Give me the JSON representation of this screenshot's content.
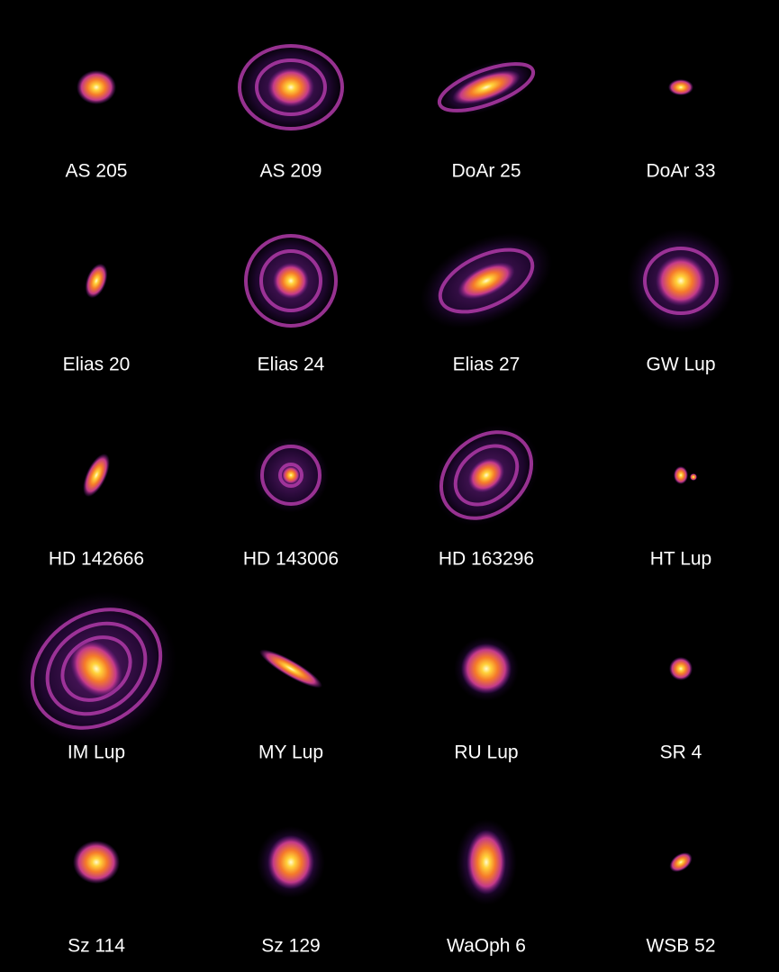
{
  "objects": [
    {
      "name": "AS 205"
    },
    {
      "name": "AS 209"
    },
    {
      "name": "DoAr 25"
    },
    {
      "name": "DoAr 33"
    },
    {
      "name": "Elias 20"
    },
    {
      "name": "Elias 24"
    },
    {
      "name": "Elias 27"
    },
    {
      "name": "GW Lup"
    },
    {
      "name": "HD 142666"
    },
    {
      "name": "HD 143006"
    },
    {
      "name": "HD 163296"
    },
    {
      "name": "HT Lup"
    },
    {
      "name": "IM Lup"
    },
    {
      "name": "MY Lup"
    },
    {
      "name": "RU Lup"
    },
    {
      "name": "SR 4"
    },
    {
      "name": "Sz 114"
    },
    {
      "name": "Sz 129"
    },
    {
      "name": "WaOph 6"
    },
    {
      "name": "WSB 52"
    }
  ]
}
